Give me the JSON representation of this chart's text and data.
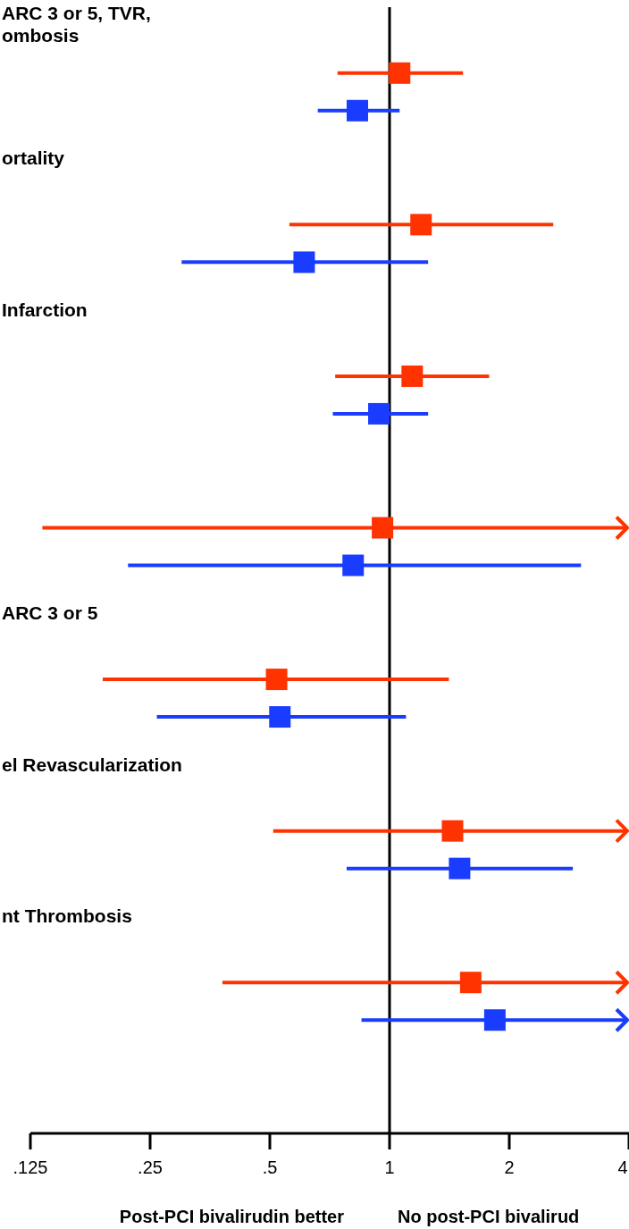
{
  "chart_data": {
    "type": "scatter",
    "orientation": "horizontal",
    "log": "x",
    "marker": "square",
    "categories": [
      "ARC 3 or 5, TVR,\nombosis",
      "ortality",
      "Infarction",
      null,
      "ARC 3 or 5",
      "el Revascularization",
      "nt Thrombosis"
    ],
    "xlim": [
      0.125,
      4
    ],
    "xticks": [
      {
        "value": 0.125,
        "label": ".125"
      },
      {
        "value": 0.25,
        "label": ".25"
      },
      {
        "value": 0.5,
        "label": ".5"
      },
      1,
      2,
      4
    ],
    "ref_lines": [
      {
        "axis": "x",
        "value": 1,
        "color": "#000000"
      }
    ],
    "series": [
      {
        "color": "#ff3300",
        "values": [
          1.06,
          1.2,
          1.14,
          0.96,
          0.52,
          1.44,
          1.6
        ],
        "errors": [
          [
            0.74,
            1.53
          ],
          [
            0.56,
            2.58
          ],
          [
            0.73,
            1.78
          ],
          [
            0.134,
            4
          ],
          [
            0.19,
            1.41
          ],
          [
            0.51,
            4
          ],
          [
            0.38,
            4
          ]
        ]
      },
      {
        "color": "#1a3cff",
        "values": [
          0.83,
          0.61,
          0.94,
          0.81,
          0.53,
          1.5,
          1.84
        ],
        "errors": [
          [
            0.66,
            1.06
          ],
          [
            0.3,
            1.25
          ],
          [
            0.72,
            1.25
          ],
          [
            0.22,
            3.03
          ],
          [
            0.26,
            1.1
          ],
          [
            0.78,
            2.89
          ],
          [
            0.85,
            4
          ]
        ]
      }
    ],
    "annotations": [
      "Post-PCI bivalirudin better",
      "No post-PCI bivalirud"
    ]
  }
}
